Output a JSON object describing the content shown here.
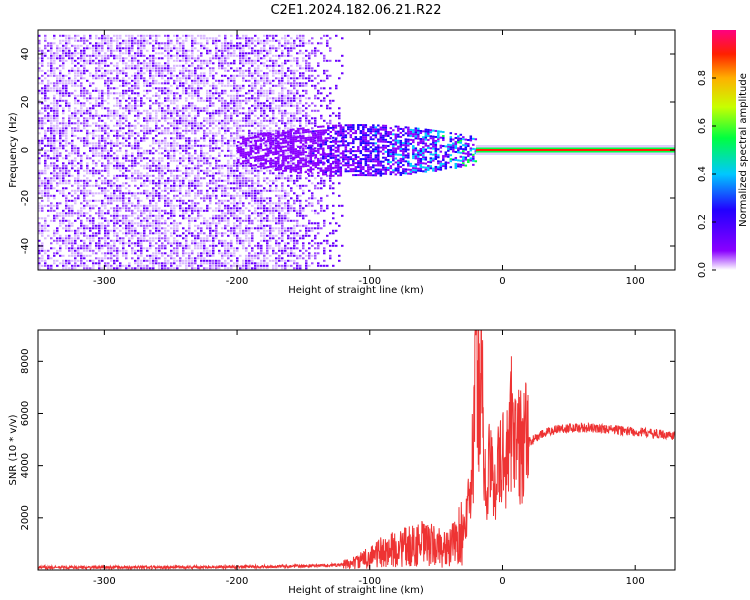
{
  "title": "C2E1.2024.182.06.21.R22",
  "chart_data": [
    {
      "type": "heatmap",
      "xlabel": "Height of straight line (km)",
      "ylabel": "Frequency (Hz)",
      "xlim": [
        -350,
        130
      ],
      "ylim": [
        -50,
        50
      ],
      "xticks": [
        -300,
        -200,
        -100,
        0,
        100
      ],
      "yticks": [
        -40,
        -20,
        0,
        20,
        40
      ],
      "colorbar": {
        "label": "Normalized spectral amplitude",
        "range": [
          0.0,
          1.0
        ],
        "ticks": [
          "0.0",
          "0.2",
          "0.4",
          "0.6",
          "0.8"
        ],
        "tick_values": [
          0.0,
          0.2,
          0.4,
          0.6,
          0.8
        ],
        "colormap": [
          "#ffffff",
          "#8a00ff",
          "#2200ff",
          "#00c8ff",
          "#00ff40",
          "#c8ff00",
          "#ffb000",
          "#ff2000",
          "#ff0080"
        ]
      },
      "regions": [
        {
          "x_range": [
            -350,
            -120
          ],
          "freq_range": [
            -50,
            48
          ],
          "amplitude": 0.1,
          "note": "broadband noise"
        },
        {
          "x_range": [
            -200,
            -20
          ],
          "freq_range": [
            -10,
            8
          ],
          "amplitude": 0.35,
          "note": "spreading echo"
        },
        {
          "x_range": [
            -20,
            130
          ],
          "freq_range": [
            -1,
            1
          ],
          "amplitude": 0.9,
          "note": "narrow carrier line"
        }
      ]
    },
    {
      "type": "line",
      "xlabel": "Height of straight line (km)",
      "ylabel": "SNR (10 * v/v)",
      "xlim": [
        -350,
        130
      ],
      "ylim": [
        0,
        9200
      ],
      "xticks": [
        -300,
        -200,
        -100,
        0,
        100
      ],
      "yticks": [
        2000,
        4000,
        6000,
        8000
      ],
      "series": [
        {
          "color": "#ee3333",
          "x": [
            -350,
            -300,
            -250,
            -200,
            -150,
            -120,
            -110,
            -100,
            -90,
            -80,
            -70,
            -60,
            -50,
            -40,
            -30,
            -25,
            -22,
            -20,
            -18,
            -16,
            -14,
            -12,
            -10,
            -8,
            -5,
            -2,
            0,
            2,
            5,
            8,
            10,
            15,
            20,
            30,
            40,
            50,
            60,
            80,
            100,
            120,
            130
          ],
          "y": [
            100,
            100,
            110,
            120,
            150,
            200,
            300,
            500,
            700,
            800,
            900,
            1000,
            900,
            800,
            1500,
            2500,
            4500,
            9200,
            7000,
            9200,
            3500,
            3000,
            4000,
            3500,
            3700,
            3900,
            4200,
            4500,
            4400,
            7000,
            4600,
            4800,
            4900,
            5200,
            5400,
            5450,
            5450,
            5400,
            5300,
            5200,
            5150
          ]
        }
      ]
    }
  ]
}
